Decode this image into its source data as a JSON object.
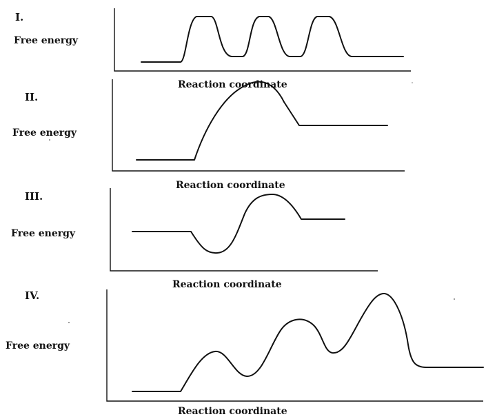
{
  "diagrams": [
    {
      "numeral": "I.",
      "ylabel": "Free energy",
      "xlabel": "Reaction coordinate"
    },
    {
      "numeral": "II.",
      "ylabel": "Free energy",
      "xlabel": "Reaction coordinate"
    },
    {
      "numeral": "III.",
      "ylabel": "Free energy",
      "xlabel": "Reaction coordinate"
    },
    {
      "numeral": "IV.",
      "ylabel": "Free energy",
      "xlabel": "Reaction coordinate"
    }
  ]
}
